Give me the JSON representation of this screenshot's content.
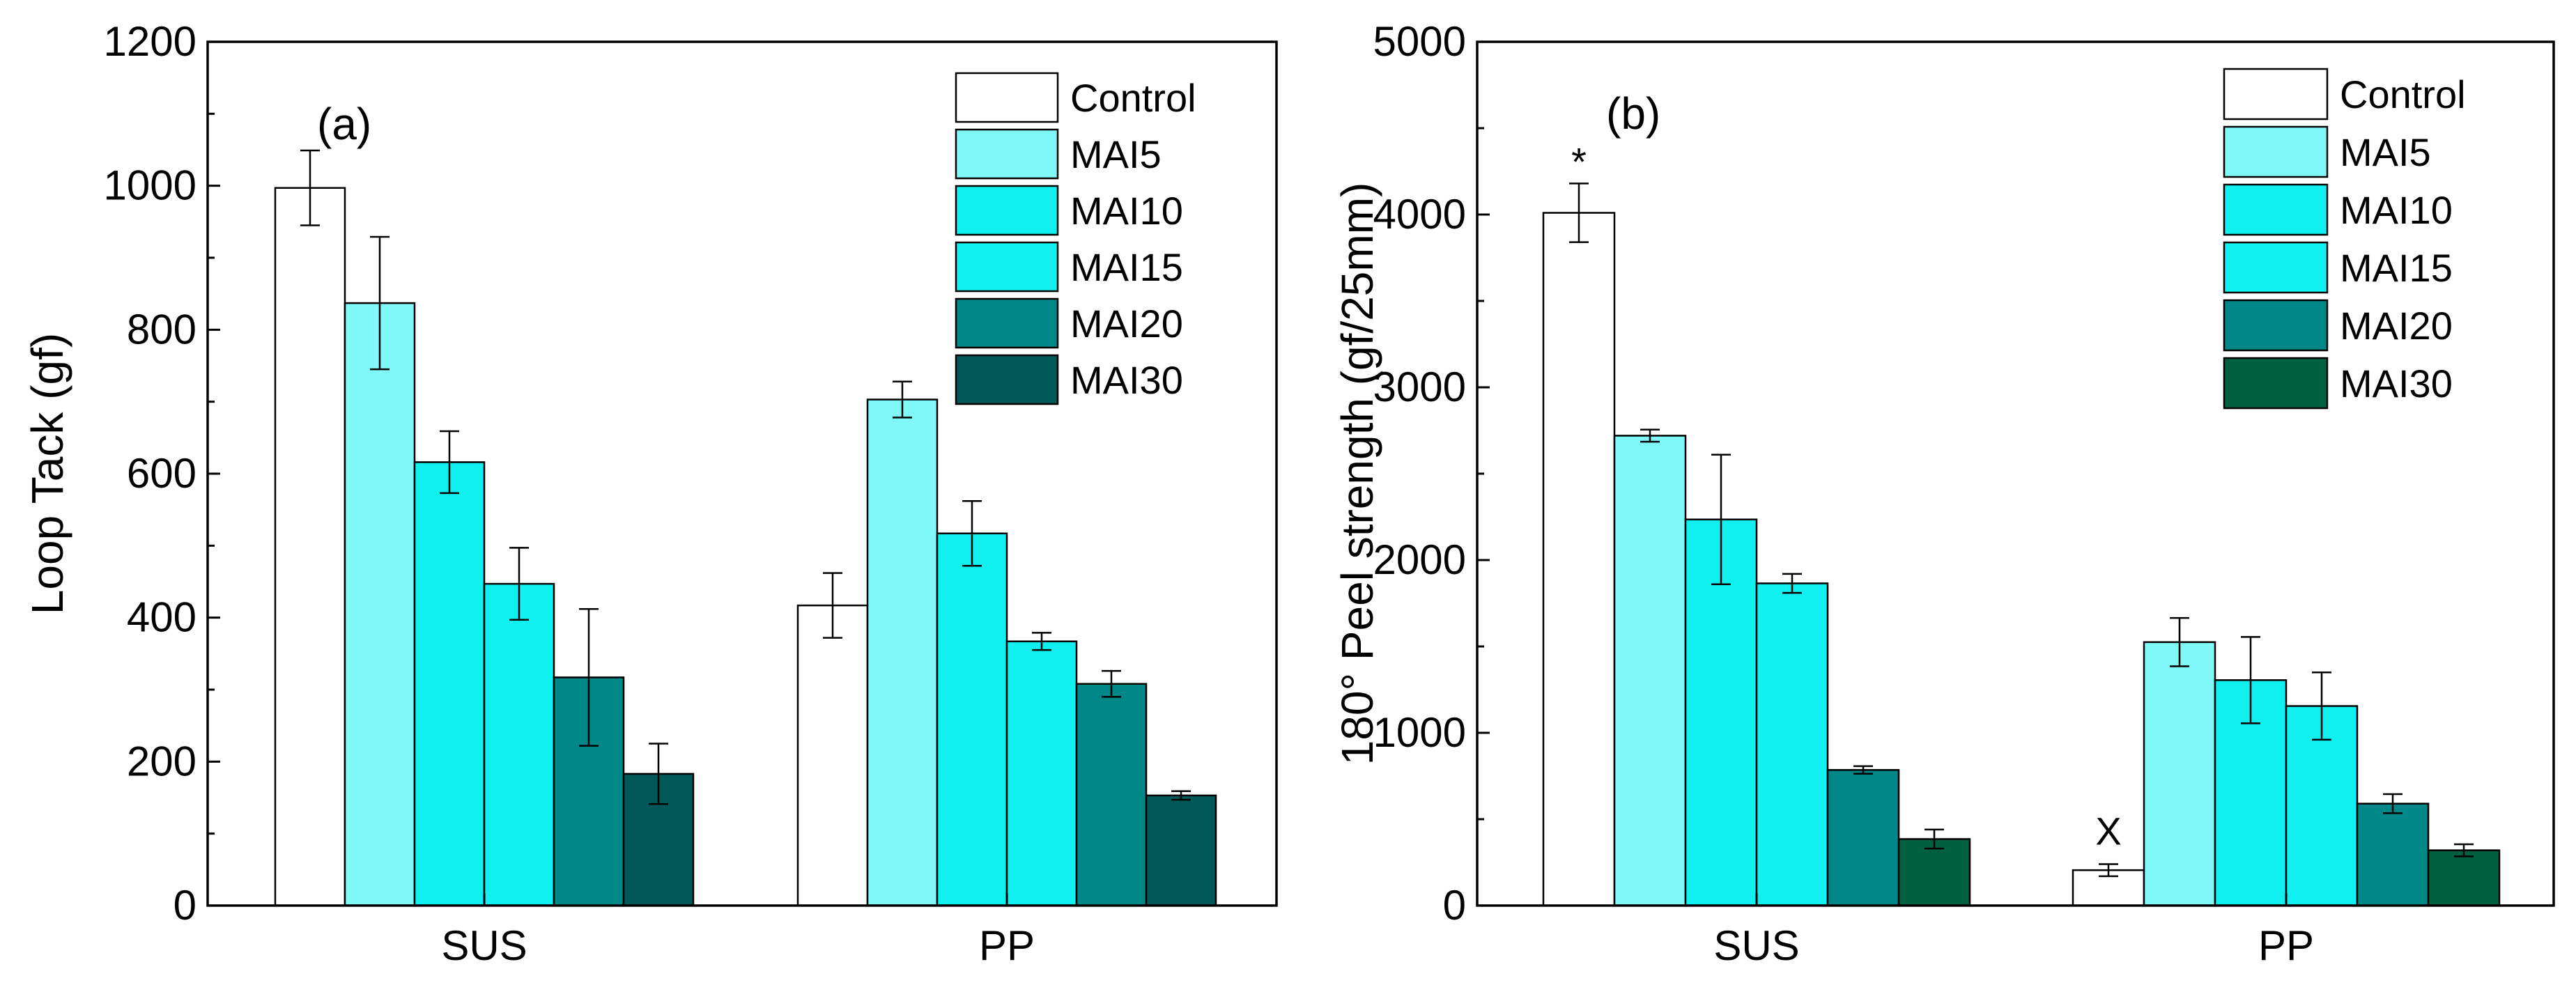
{
  "chart_data": [
    {
      "type": "bar",
      "panel_label": "(a)",
      "title": "",
      "xlabel": "",
      "ylabel": "Loop Tack (gf)",
      "ylim": [
        0,
        1200
      ],
      "yticks": [
        0,
        200,
        400,
        600,
        800,
        1000,
        1200
      ],
      "categories": [
        "SUS",
        "PP"
      ],
      "series": [
        {
          "name": "Control",
          "color": "#ffffff",
          "values": [
            997,
            417
          ],
          "errors": [
            52,
            45
          ]
        },
        {
          "name": "MAI5",
          "color": "#80f8f8",
          "values": [
            837,
            703
          ],
          "errors": [
            92,
            25
          ]
        },
        {
          "name": "MAI10",
          "color": "#10f0f0",
          "values": [
            616,
            517
          ],
          "errors": [
            43,
            45
          ]
        },
        {
          "name": "MAI15",
          "color": "#10f0f0",
          "values": [
            447,
            367
          ],
          "errors": [
            50,
            12
          ]
        },
        {
          "name": "MAI20",
          "color": "#008888",
          "values": [
            317,
            308
          ],
          "errors": [
            95,
            18
          ]
        },
        {
          "name": "MAI30",
          "color": "#005858",
          "values": [
            183,
            153
          ],
          "errors": [
            42,
            6
          ]
        }
      ],
      "annotations": []
    },
    {
      "type": "bar",
      "panel_label": "(b)",
      "title": "",
      "xlabel": "",
      "ylabel": "180° Peel strength (gf/25mm)",
      "ylim": [
        0,
        5000
      ],
      "yticks": [
        0,
        1000,
        2000,
        3000,
        4000,
        5000
      ],
      "categories": [
        "SUS",
        "PP"
      ],
      "series": [
        {
          "name": "Control",
          "color": "#ffffff",
          "values": [
            4010,
            205
          ],
          "errors": [
            170,
            35
          ]
        },
        {
          "name": "MAI5",
          "color": "#80f8f8",
          "values": [
            2720,
            1525
          ],
          "errors": [
            35,
            140
          ]
        },
        {
          "name": "MAI10",
          "color": "#10f0f0",
          "values": [
            2235,
            1305
          ],
          "errors": [
            375,
            250
          ]
        },
        {
          "name": "MAI15",
          "color": "#10f0f0",
          "values": [
            1865,
            1155
          ],
          "errors": [
            55,
            195
          ]
        },
        {
          "name": "MAI20",
          "color": "#008888",
          "values": [
            785,
            590
          ],
          "errors": [
            22,
            55
          ]
        },
        {
          "name": "MAI30",
          "color": "#006040",
          "values": [
            385,
            320
          ],
          "errors": [
            55,
            35
          ]
        }
      ],
      "annotations": [
        {
          "text": "*",
          "series": "Control",
          "category": "SUS",
          "color": "#e01010"
        },
        {
          "text": "X",
          "series": "Control",
          "category": "PP",
          "color": "#000000"
        }
      ]
    }
  ]
}
